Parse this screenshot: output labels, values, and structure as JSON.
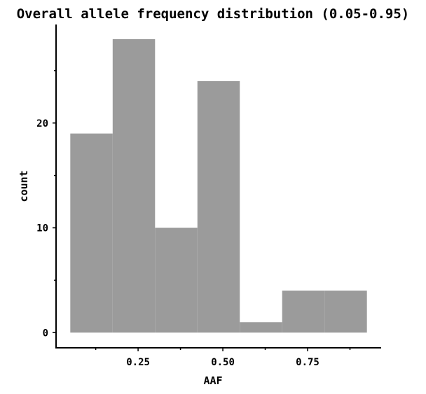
{
  "chart_data": {
    "type": "bar",
    "title": "Overall allele frequency distribution (0.05-0.95)",
    "xlabel": "AAF",
    "ylabel": "count",
    "bins": [
      {
        "x0": 0.05,
        "x1": 0.175,
        "count": 19
      },
      {
        "x0": 0.175,
        "x1": 0.3,
        "count": 28
      },
      {
        "x0": 0.3,
        "x1": 0.425,
        "count": 10
      },
      {
        "x0": 0.425,
        "x1": 0.55,
        "count": 24
      },
      {
        "x0": 0.55,
        "x1": 0.675,
        "count": 1
      },
      {
        "x0": 0.675,
        "x1": 0.8,
        "count": 4
      },
      {
        "x0": 0.8,
        "x1": 0.925,
        "count": 4
      }
    ],
    "xlim": [
      0.008,
      0.967
    ],
    "ylim": [
      -1.45,
      29.4
    ],
    "x_ticks": [
      0.25,
      0.5,
      0.75
    ],
    "x_tick_labels": [
      "0.25",
      "0.50",
      "0.75"
    ],
    "x_minor_ticks": [
      0.125,
      0.375,
      0.625,
      0.875
    ],
    "y_ticks": [
      0,
      10,
      20
    ],
    "y_tick_labels": [
      "0",
      "10",
      "20"
    ],
    "y_minor_ticks": [
      5,
      15,
      25
    ],
    "bar_color": "#9b9b9b",
    "grid": false
  }
}
